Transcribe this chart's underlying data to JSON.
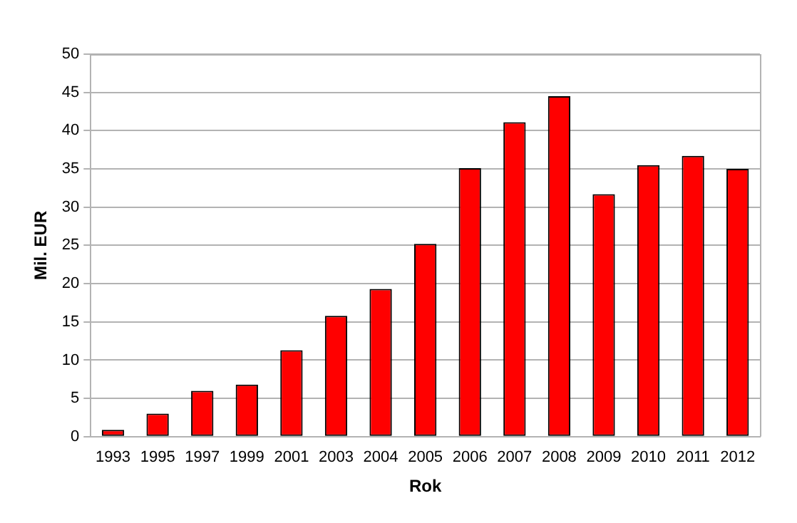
{
  "chart_data": {
    "type": "bar",
    "xlabel": "Rok",
    "ylabel": "Mil. EUR",
    "categories": [
      "1993",
      "1995",
      "1997",
      "1999",
      "2001",
      "2003",
      "2004",
      "2005",
      "2006",
      "2007",
      "2008",
      "2009",
      "2010",
      "2011",
      "2012"
    ],
    "values": [
      0.9,
      3.0,
      6.0,
      6.8,
      11.3,
      15.8,
      19.3,
      25.2,
      35.1,
      41.1,
      44.5,
      31.7,
      35.5,
      36.7,
      35.0
    ],
    "color": "#ff0000",
    "ylim": [
      0,
      50
    ],
    "yticks": [
      0,
      5,
      10,
      15,
      20,
      25,
      30,
      35,
      40,
      45,
      50
    ],
    "grid": "y",
    "legend": false
  }
}
